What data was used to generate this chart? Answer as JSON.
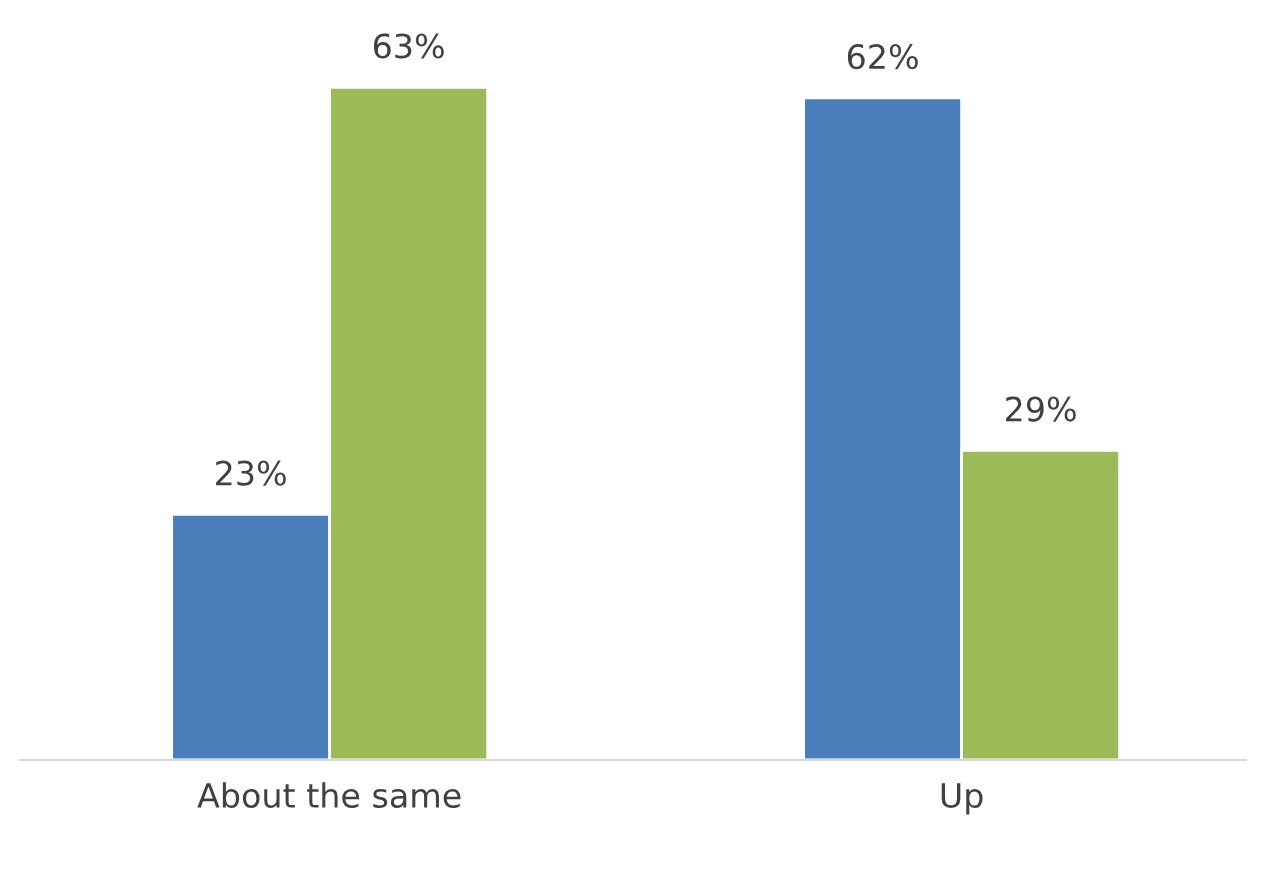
{
  "chart_data": {
    "type": "bar",
    "categories": [
      "About the same",
      "Up"
    ],
    "series": [
      {
        "color": "#4a7ebb",
        "values": [
          23,
          62
        ],
        "value_labels": [
          "23%",
          "62%"
        ]
      },
      {
        "color": "#9bbb59",
        "values": [
          63,
          29
        ],
        "value_labels": [
          "63%",
          "29%"
        ]
      }
    ],
    "grid": false,
    "legend": false
  }
}
